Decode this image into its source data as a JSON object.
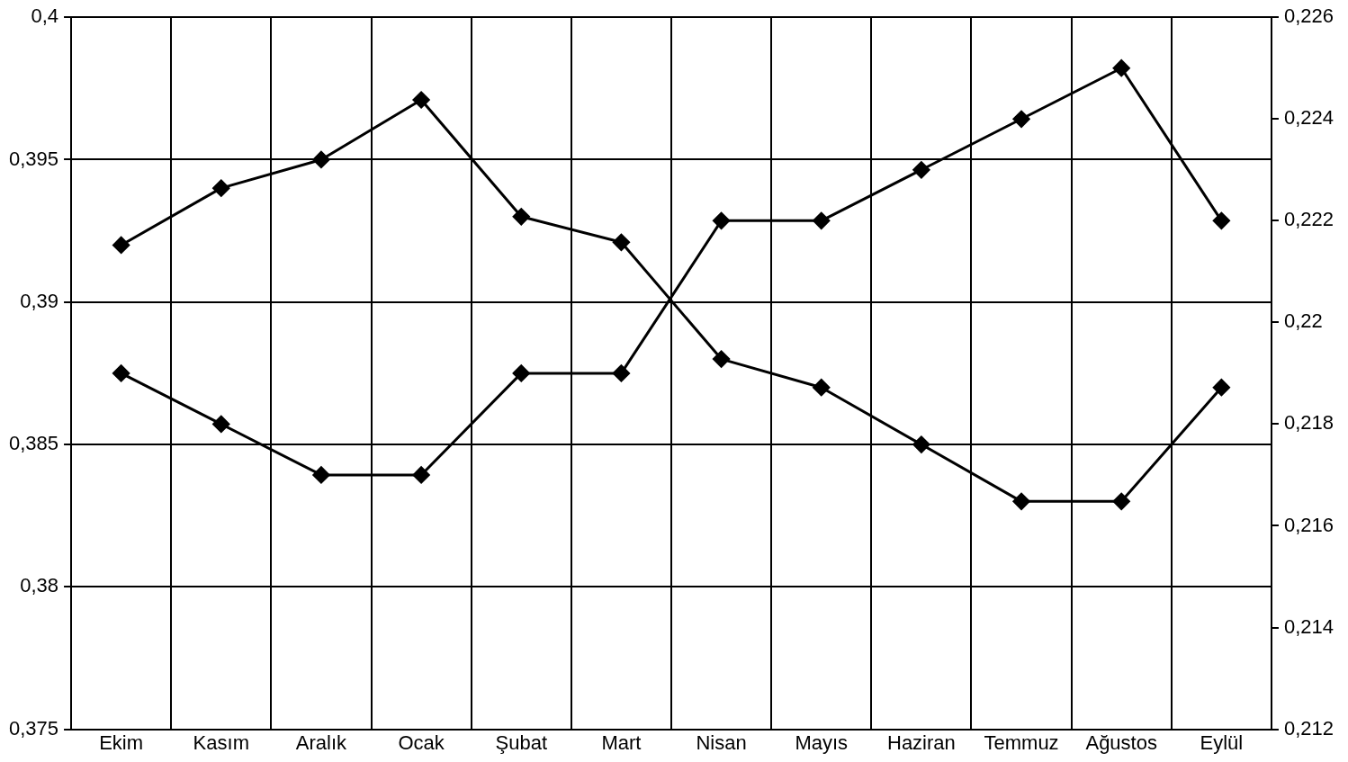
{
  "chart_data": {
    "type": "line",
    "categories": [
      "Ekim",
      "Kasım",
      "Aralık",
      "Ocak",
      "Şubat",
      "Mart",
      "Nisan",
      "Mayıs",
      "Haziran",
      "Temmuz",
      "Ağustos",
      "Eylül"
    ],
    "series": [
      {
        "color": "#000000",
        "values": [
          0.392,
          0.394,
          0.395,
          0.3971,
          0.393,
          0.3921,
          0.388,
          0.387,
          0.385,
          0.383,
          0.383,
          0.387
        ]
      },
      {
        "color": "#000000",
        "axis": "y2",
        "values": [
          0.219,
          0.218,
          0.217,
          0.217,
          0.219,
          0.219,
          0.222,
          0.222,
          0.223,
          0.224,
          0.225,
          0.222
        ]
      }
    ],
    "ylim": [
      0.375,
      0.4
    ],
    "yticks": [
      {
        "value": 0.375,
        "label": "0,375"
      },
      {
        "value": 0.38,
        "label": "0,38"
      },
      {
        "value": 0.385,
        "label": "0,385"
      },
      {
        "value": 0.39,
        "label": "0,39"
      },
      {
        "value": 0.395,
        "label": "0,395"
      },
      {
        "value": 0.4,
        "label": "0,4"
      }
    ],
    "y2lim": [
      0.212,
      0.226
    ],
    "y2ticks": [
      {
        "value": 0.212,
        "label": "0,212"
      },
      {
        "value": 0.214,
        "label": "0,214"
      },
      {
        "value": 0.216,
        "label": "0,216"
      },
      {
        "value": 0.218,
        "label": "0,218"
      },
      {
        "value": 0.22,
        "label": "0,22"
      },
      {
        "value": 0.222,
        "label": "0,222"
      },
      {
        "value": 0.224,
        "label": "0,224"
      },
      {
        "value": 0.226,
        "label": "0,226"
      }
    ],
    "grid": true,
    "legend": false,
    "marker": "diamond",
    "line_style": "solid"
  }
}
